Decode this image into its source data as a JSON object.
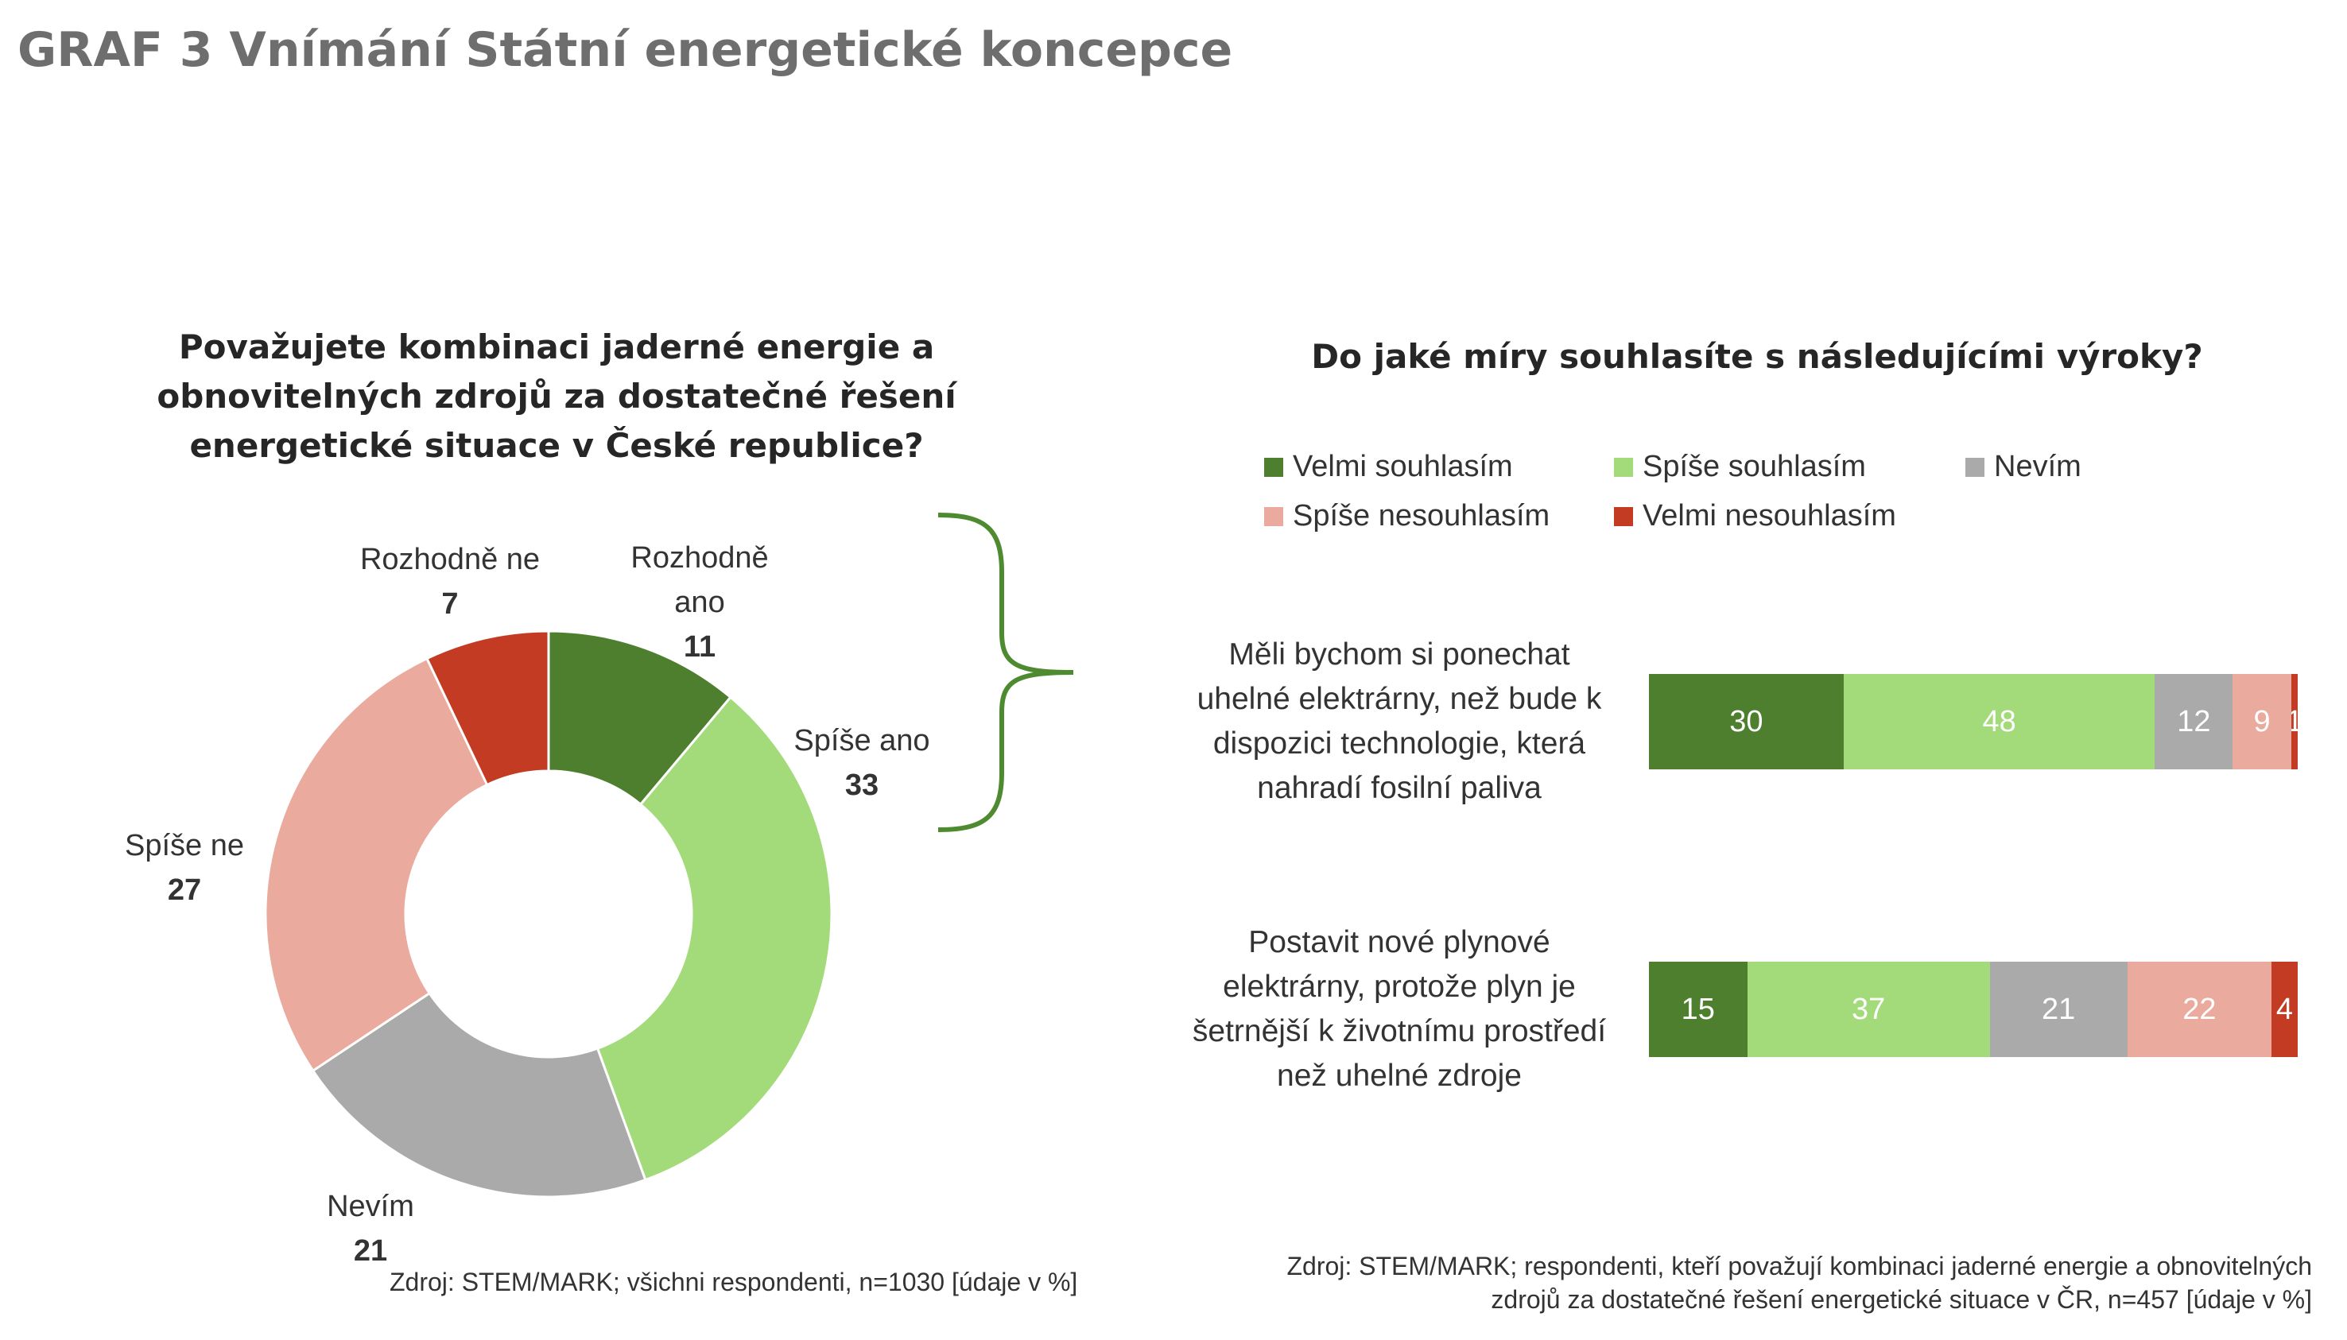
{
  "title": "GRAF 3 Vnímání Státní energetické koncepce",
  "colors": {
    "velmi_souhlasim": "#4e7f2e",
    "spise_souhlasim": "#a3db7b",
    "nevim": "#aaaaaa",
    "spise_nesouhlasim": "#eaaa9e",
    "velmi_nesouhlasim": "#c23b22",
    "brace": "#4e8a30"
  },
  "chart_data": [
    {
      "type": "pie",
      "title": "Považujete kombinaci jaderné energie a obnovitelných zdrojů za dostatečné řešení energetické situace v České republice?",
      "donut": true,
      "slices": [
        {
          "label": "Rozhodně ano",
          "label_lines": [
            "Rozhodně",
            "ano"
          ],
          "value": 11,
          "color": "#4e7f2e"
        },
        {
          "label": "Spíše ano",
          "label_lines": [
            "Spíše ano"
          ],
          "value": 33,
          "color": "#a3db7b"
        },
        {
          "label": "Nevím",
          "label_lines": [
            "Nevím"
          ],
          "value": 21,
          "color": "#aaaaaa"
        },
        {
          "label": "Spíše ne",
          "label_lines": [
            "Spíše ne"
          ],
          "value": 27,
          "color": "#eaaa9e"
        },
        {
          "label": "Rozhodně ne",
          "label_lines": [
            "Rozhodně ne"
          ],
          "value": 7,
          "color": "#c23b22"
        }
      ],
      "source": "Zdroj: STEM/MARK; všichni respondenti, n=1030 [údaje v %]"
    },
    {
      "type": "bar",
      "orientation": "horizontal",
      "stacked": true,
      "title": "Do jaké míry souhlasíte s následujícími výroky?",
      "legend_position": "top",
      "series": [
        {
          "name": "Velmi souhlasím",
          "color": "#4e7f2e"
        },
        {
          "name": "Spíše souhlasím",
          "color": "#a3db7b"
        },
        {
          "name": "Nevím",
          "color": "#aaaaaa"
        },
        {
          "name": "Spíše nesouhlasím",
          "color": "#eaaa9e"
        },
        {
          "name": "Velmi nesouhlasím",
          "color": "#c23b22"
        }
      ],
      "categories": [
        {
          "label_lines": [
            "Měli bychom si ponechat",
            "uhelné elektrárny, než bude k",
            "dispozici technologie, která",
            "nahradí fosilní paliva"
          ],
          "values": [
            30,
            48,
            12,
            9,
            1
          ]
        },
        {
          "label_lines": [
            "Postavit nové plynové",
            "elektrárny, protože plyn je",
            "šetrnější k životnímu prostředí",
            "než uhelné zdroje"
          ],
          "values": [
            15,
            37,
            21,
            22,
            4
          ]
        }
      ],
      "source_lines": [
        "Zdroj: STEM/MARK; respondenti, kteří považují kombinaci jaderné energie a obnovitelných",
        "zdrojů za dostatečné řešení energetické situace v ČR, n=457 [údaje v %]"
      ]
    }
  ]
}
